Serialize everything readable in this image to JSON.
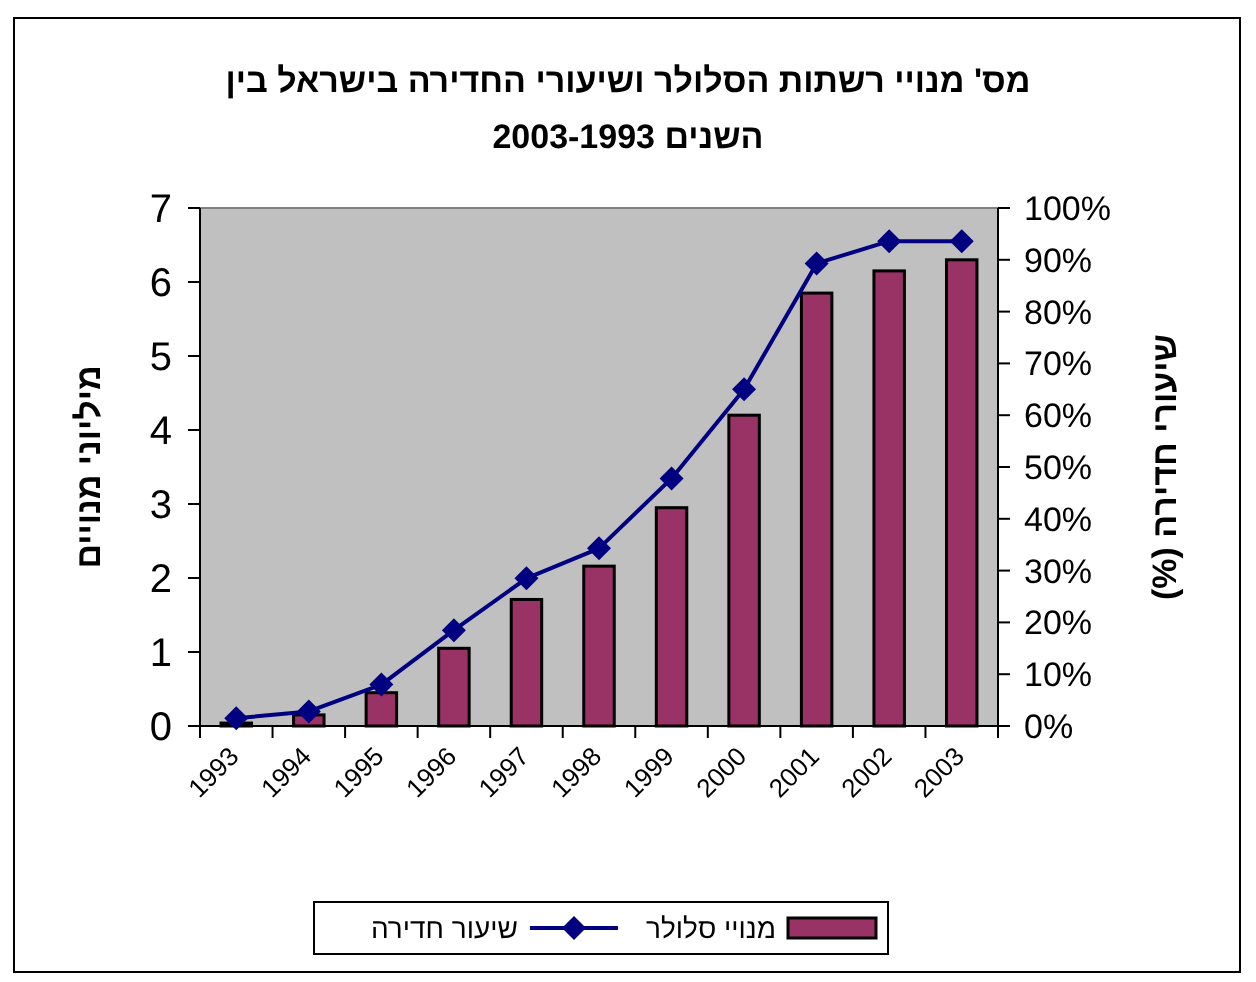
{
  "chart_data": {
    "type": "bar",
    "title": "מס' מנויי רשתות הסלולר ושיעורי החדירה בישראל בין\nהשנים 2003-1993",
    "ylabel": "מיליוני מנויים",
    "y2label": "שיעורי חדירה (%)",
    "categories": [
      "1993",
      "1994",
      "1995",
      "1996",
      "1997",
      "1998",
      "1999",
      "2000",
      "2001",
      "2002",
      "2003"
    ],
    "series": [
      {
        "name": "מנויי סלולר",
        "color": "#993366",
        "values": [
          0.04,
          0.15,
          0.45,
          1.05,
          1.71,
          2.16,
          2.95,
          4.2,
          5.85,
          6.15,
          6.3
        ]
      },
      {
        "name": "שיעור חדירה",
        "type": "line",
        "axis": "y2",
        "color": "#000080",
        "values": [
          1.5,
          2.8,
          8,
          18.5,
          28.5,
          34.3,
          47.8,
          65,
          89.3,
          93.6,
          93.6
        ]
      }
    ],
    "marker": "diamond",
    "line_style": "solid",
    "ylim": [
      0,
      7
    ],
    "yticks": [
      0,
      1,
      2,
      3,
      4,
      5,
      6,
      7
    ],
    "y2lim": [
      0,
      100
    ],
    "y2ticks": [
      {
        "value": 0,
        "label": "0%"
      },
      {
        "value": 10,
        "label": "10%"
      },
      {
        "value": 20,
        "label": "20%"
      },
      {
        "value": 30,
        "label": "30%"
      },
      {
        "value": 40,
        "label": "40%"
      },
      {
        "value": 50,
        "label": "50%"
      },
      {
        "value": 60,
        "label": "60%"
      },
      {
        "value": 70,
        "label": "70%"
      },
      {
        "value": 80,
        "label": "80%"
      },
      {
        "value": 90,
        "label": "90%"
      },
      {
        "value": 100,
        "label": "100%"
      }
    ],
    "legend": "bottom",
    "grid": false
  }
}
